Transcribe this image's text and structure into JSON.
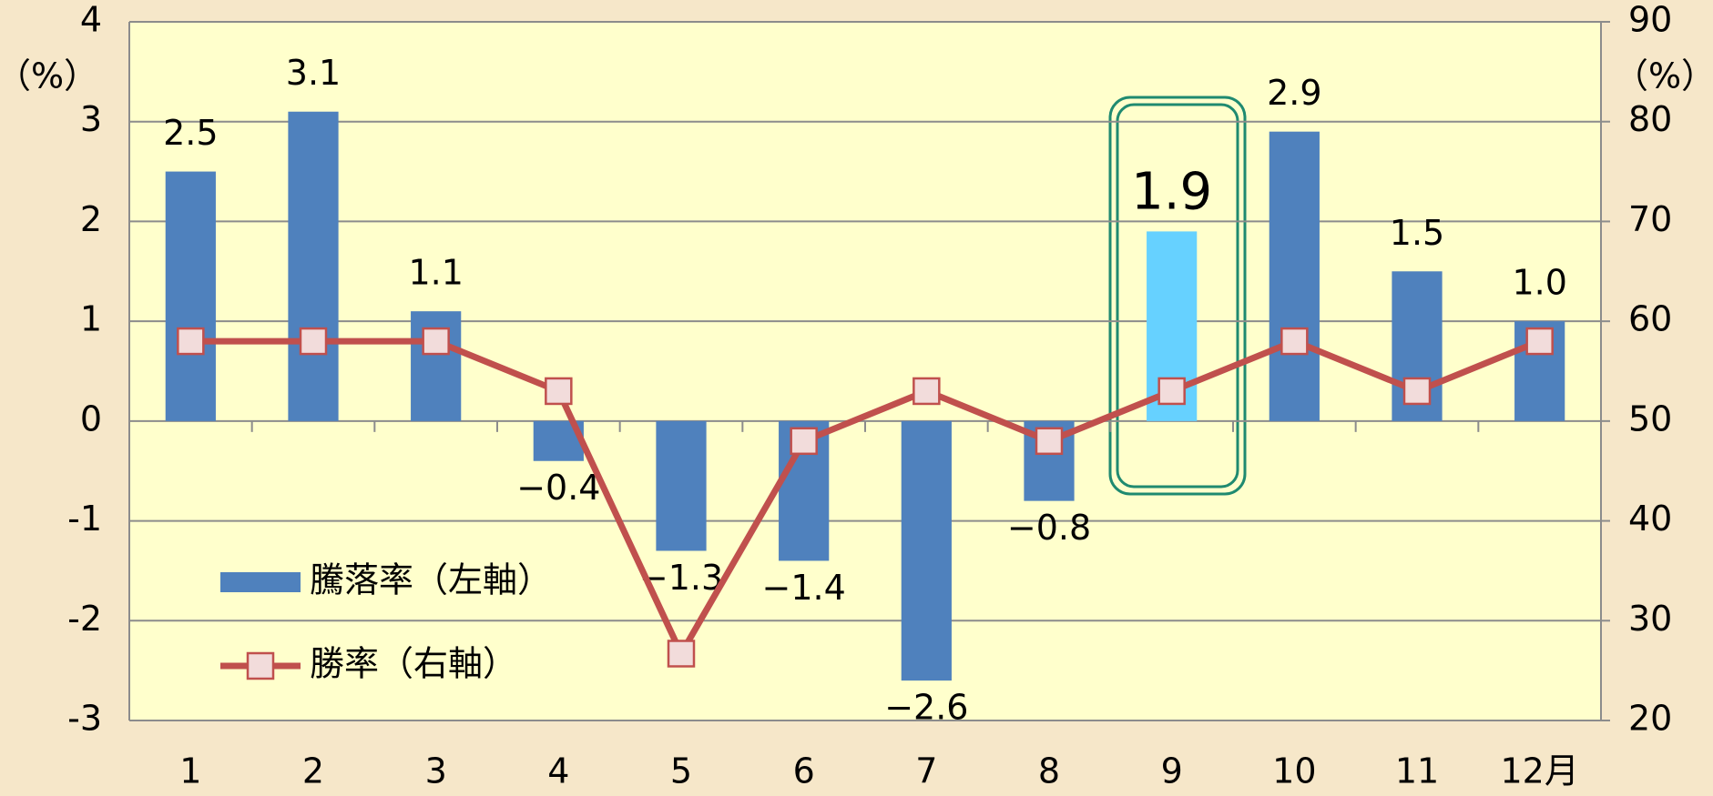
{
  "chart_data": {
    "type": "bar-line",
    "categories": [
      "1",
      "2",
      "3",
      "4",
      "5",
      "6",
      "7",
      "8",
      "9",
      "10",
      "11",
      "12月"
    ],
    "ylabel": "（%）",
    "y2label": "（%）",
    "ylim": [
      -3,
      4
    ],
    "yticks": [
      -3,
      -2,
      -1,
      0,
      1,
      2,
      3,
      4
    ],
    "y2lim": [
      20,
      90
    ],
    "y2ticks": [
      20,
      30,
      40,
      50,
      60,
      70,
      80,
      90
    ],
    "grid": true,
    "legend": "lower left",
    "positive_label_color": "#000000",
    "negative_label_color": "#ff0000",
    "series": [
      {
        "name": "騰落率（左軸）",
        "kind": "bar",
        "color": "#4f81bd",
        "colors": [
          "#4f81bd",
          "#4f81bd",
          "#4f81bd",
          "#4f81bd",
          "#4f81bd",
          "#4f81bd",
          "#4f81bd",
          "#4f81bd",
          "#66d1ff",
          "#4f81bd",
          "#4f81bd",
          "#4f81bd"
        ],
        "values": [
          2.5,
          3.1,
          1.1,
          -0.4,
          -1.3,
          -1.4,
          -2.6,
          -0.8,
          1.9,
          2.9,
          1.5,
          1.0
        ],
        "value_labels": [
          "2.5",
          "3.1",
          "1.1",
          "−0.4",
          "−1.3",
          "−1.4",
          "−2.6",
          "−0.8",
          "1.9",
          "2.9",
          "1.5",
          "1.0"
        ]
      },
      {
        "name": "勝率（右軸）",
        "kind": "line",
        "axis": "y2",
        "color": "#c0504d",
        "marker_color": "#f2dcdb",
        "values": [
          58,
          58,
          58,
          53,
          26.7,
          48,
          53,
          48,
          53,
          58,
          53,
          58
        ]
      }
    ]
  }
}
